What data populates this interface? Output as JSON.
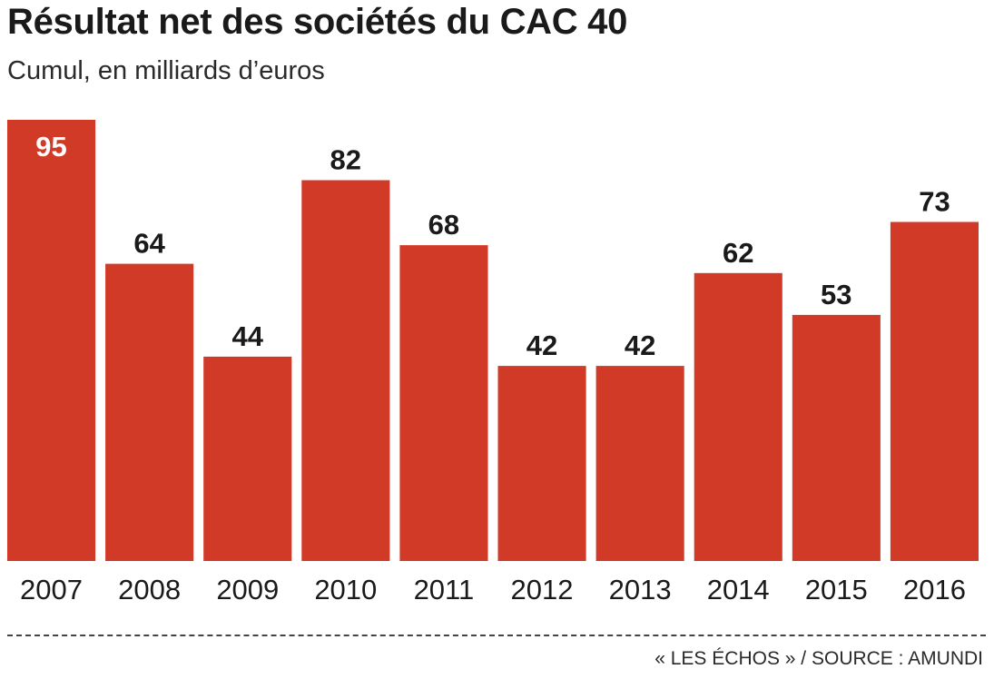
{
  "title": "Résultat net des sociétés du CAC 40",
  "subtitle": "Cumul, en milliards d’euros",
  "footer": "« LES ÉCHOS » / SOURCE : AMUNDI",
  "colors": {
    "bar": "#d13a27",
    "label_inside": "#ffffff",
    "label_outside": "#1a1a1a",
    "axis_text": "#1a1a1a"
  },
  "chart_data": {
    "type": "bar",
    "categories": [
      "2007",
      "2008",
      "2009",
      "2010",
      "2011",
      "2012",
      "2013",
      "2014",
      "2015",
      "2016"
    ],
    "values": [
      95,
      64,
      44,
      82,
      68,
      42,
      42,
      62,
      53,
      73
    ],
    "title": "Résultat net des sociétés du CAC 40",
    "subtitle": "Cumul, en milliards d’euros",
    "xlabel": "",
    "ylabel": "",
    "ylim": [
      0,
      95
    ],
    "grid": false,
    "legend": "none",
    "data_labels": true
  }
}
